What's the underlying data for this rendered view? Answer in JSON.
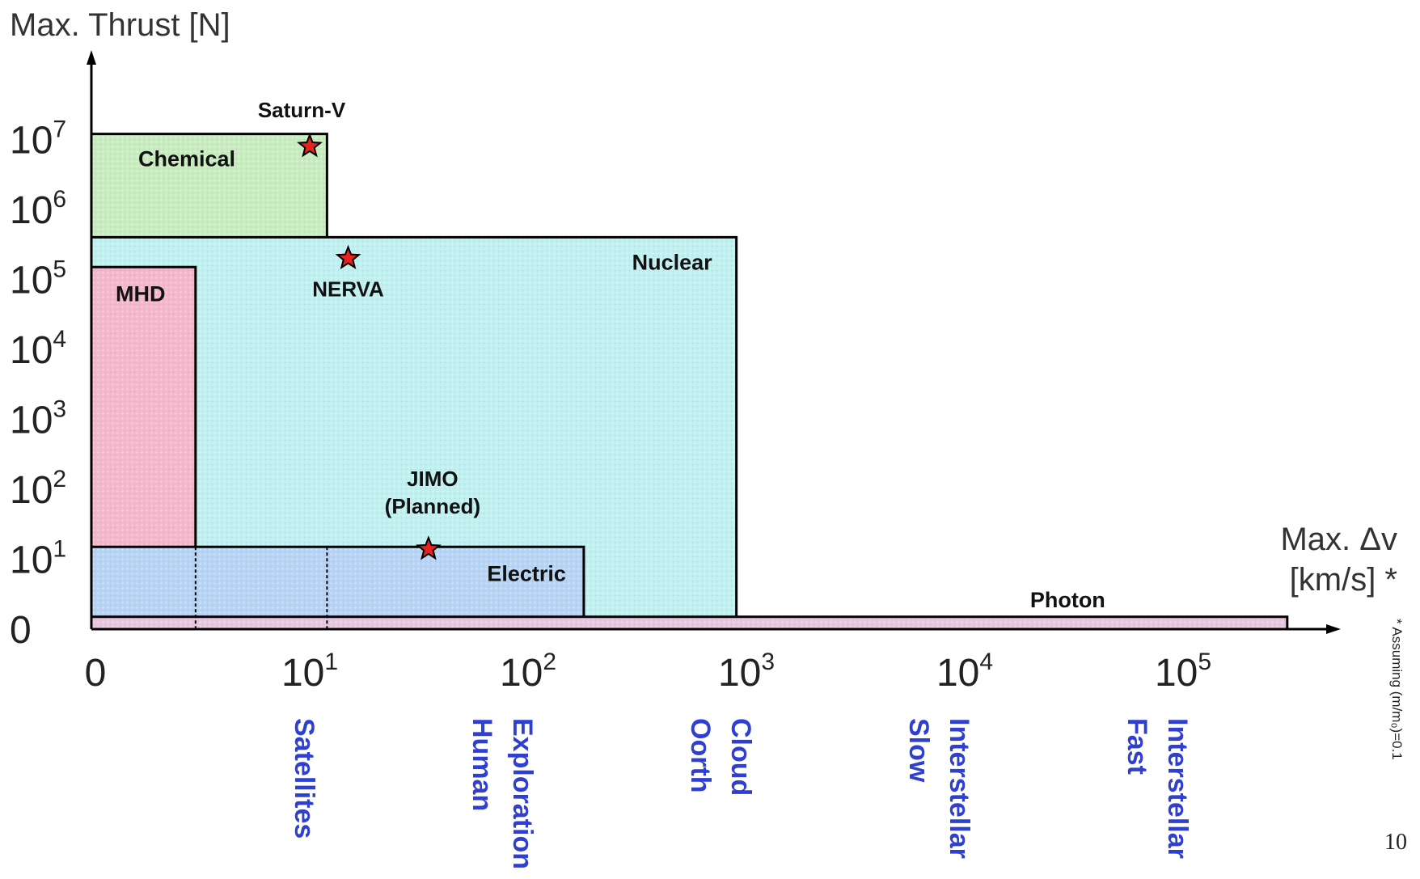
{
  "chart_data": {
    "type": "area",
    "ylabel": "Max. Thrust [N]",
    "xlabel_line1": "Max. Δv",
    "xlabel_line2": "[km/s] *",
    "x_scale": "log",
    "y_scale": "log",
    "x_ticks": [
      {
        "base": "0",
        "exp": ""
      },
      {
        "base": "10",
        "exp": "1"
      },
      {
        "base": "10",
        "exp": "2"
      },
      {
        "base": "10",
        "exp": "3"
      },
      {
        "base": "10",
        "exp": "4"
      },
      {
        "base": "10",
        "exp": "5"
      }
    ],
    "y_ticks": [
      {
        "base": "0",
        "exp": ""
      },
      {
        "base": "10",
        "exp": "1"
      },
      {
        "base": "10",
        "exp": "2"
      },
      {
        "base": "10",
        "exp": "3"
      },
      {
        "base": "10",
        "exp": "4"
      },
      {
        "base": "10",
        "exp": "5"
      },
      {
        "base": "10",
        "exp": "6"
      },
      {
        "base": "10",
        "exp": "7"
      }
    ],
    "regions": [
      {
        "name": "Chemical",
        "x_max": 12,
        "y_max": 12000000,
        "color": "#c8ecc0"
      },
      {
        "name": "Nuclear",
        "x_max": 900,
        "y_max": 400000,
        "color": "#c0f0f0"
      },
      {
        "name": "MHD",
        "x_max": 3,
        "y_max": 150000,
        "color": "#f4b8cc"
      },
      {
        "name": "Electric",
        "x_max": 180,
        "y_max": 15,
        "color": "#b8d4f4"
      },
      {
        "name": "Photon",
        "x_max": 300000,
        "y_max": 1.5,
        "color": "#e8c8e0"
      }
    ],
    "points": [
      {
        "name": "Saturn-V",
        "x": 10,
        "y": 8000000
      },
      {
        "name": "NERVA",
        "x": 15,
        "y": 200000
      },
      {
        "name": "JIMO (Planned)",
        "x": 35,
        "y": 14
      }
    ],
    "missions": [
      {
        "lines": [
          "Satellites"
        ],
        "x": 10
      },
      {
        "lines": [
          "Human",
          "Exploration"
        ],
        "x": 100
      },
      {
        "lines": [
          "Oorth",
          "Cloud"
        ],
        "x": 1000
      },
      {
        "lines": [
          "Slow",
          "Interstellar"
        ],
        "x": 10000
      },
      {
        "lines": [
          "Fast",
          "Interstellar"
        ],
        "x": 100000
      }
    ],
    "footnote": "* Assuming (m/m₀)=0.1",
    "page_number": "10",
    "grid": false,
    "star_color": "#e8231e"
  }
}
